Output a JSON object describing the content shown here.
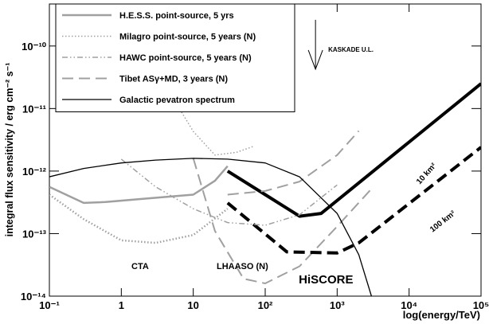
{
  "chart_data": {
    "type": "line",
    "xlabel": "log(energy/TeV)",
    "ylabel": "integral flux sensitivity / erg cm⁻² s⁻¹",
    "xlog": true,
    "ylog": true,
    "xlim": [
      0.1,
      100000
    ],
    "ylim": [
      1e-14,
      4.7e-10
    ],
    "xticks": [
      {
        "value": 0.1,
        "label": "10⁻¹"
      },
      1,
      10,
      {
        "value": 100,
        "label": "10²"
      },
      {
        "value": 1000,
        "label": "10³"
      },
      {
        "value": 10000,
        "label": "10⁴"
      },
      {
        "value": 100000,
        "label": "10⁵"
      }
    ],
    "yticks": [
      {
        "value": 1e-14,
        "label": "10⁻¹⁴"
      },
      {
        "value": 1e-13,
        "label": "10⁻¹³"
      },
      {
        "value": 1e-12,
        "label": "10⁻¹²"
      },
      {
        "value": 1e-11,
        "label": "10⁻¹¹"
      },
      {
        "value": 1e-10,
        "label": "10⁻¹⁰"
      }
    ],
    "legend": "upper left",
    "series": [
      {
        "name": "H.E.S.S. point-source, 5 yrs",
        "color": "#a0a0a0",
        "dash": "solid",
        "width": 2.5,
        "x": [
          0.1,
          0.3,
          0.6,
          2,
          10,
          20,
          30
        ],
        "values": [
          5.6e-13,
          3.1e-13,
          3.2e-13,
          3.6e-13,
          4.2e-13,
          7e-13,
          1.2e-12
        ]
      },
      {
        "name": "Milagro point-source, 5 years (N)",
        "color": "#a0a0a0",
        "dash": "dotted",
        "width": 1.5,
        "x": [
          5,
          10,
          20,
          40,
          70
        ],
        "values": [
          1.6e-11,
          4.3e-12,
          1.8e-12,
          2e-12,
          2.5e-12
        ]
      },
      {
        "name": "HAWC point-source, 5 years (N)",
        "color": "#a0a0a0",
        "dash": "dashdot",
        "width": 1.5,
        "x": [
          1,
          3,
          10,
          30,
          100,
          300,
          1000
        ],
        "values": [
          1.55e-12,
          5.6e-13,
          2.5e-13,
          1.5e-13,
          1.36e-13,
          2e-13,
          6e-13
        ]
      },
      {
        "name": "Tibet ASγ+MD, 3 years (N)",
        "color": "#a0a0a0",
        "dash": "dashed",
        "width": 2,
        "x": [
          30,
          100,
          300,
          1000,
          2000
        ],
        "values": [
          4.2e-13,
          4.8e-13,
          6.8e-13,
          1.8e-12,
          4.4e-12
        ]
      },
      {
        "name": "Galactic pevatron spectrum",
        "color": "#000000",
        "dash": "solid",
        "width": 1.3,
        "x": [
          0.1,
          0.3,
          1,
          3,
          10,
          30,
          100,
          300,
          1000,
          2000,
          3000
        ],
        "values": [
          8.1e-13,
          1.1e-12,
          1.35e-12,
          1.5e-12,
          1.6e-12,
          1.55e-12,
          1.35e-12,
          8.1e-13,
          2.1e-13,
          4.6e-14,
          1e-14
        ]
      }
    ],
    "curves": [
      {
        "label": "CTA",
        "color": "#a0a0a0",
        "dash": "dotted",
        "width": 2.5,
        "x": [
          0.1,
          0.3,
          1,
          3,
          10,
          30
        ],
        "values": [
          4.2e-13,
          1.7e-13,
          7.8e-14,
          7.1e-14,
          9.5e-14,
          2.5e-13
        ]
      },
      {
        "label": "LHAASO (N)",
        "color": "#a0a0a0",
        "dash": "dashed",
        "width": 2,
        "x": [
          10,
          20,
          50,
          100,
          300,
          1000,
          3000
        ],
        "values": [
          1.6e-12,
          1.1e-13,
          1.9e-14,
          1.6e-14,
          3e-14,
          1.3e-13,
          5.2e-13
        ]
      },
      {
        "label": "10 km²",
        "color": "#000000",
        "dash": "solid",
        "width": 4,
        "x": [
          30,
          100,
          300,
          600,
          100000
        ],
        "values": [
          1e-12,
          4.2e-13,
          1.9e-13,
          2.1e-13,
          2.5e-11
        ]
      },
      {
        "label": "100 km²",
        "color": "#000000",
        "dash": "dashed",
        "width": 4,
        "x": [
          30,
          200,
          1000,
          2000,
          100000
        ],
        "values": [
          3.1e-13,
          5.1e-14,
          4.9e-14,
          7.1e-14,
          2.4e-12
        ]
      }
    ],
    "annotations": [
      {
        "text": "HiSCORE",
        "x": 700,
        "y": 1.6e-14
      },
      {
        "text": "KASKADE U.L.",
        "x": 500,
        "y": 2.2e-10
      }
    ]
  }
}
